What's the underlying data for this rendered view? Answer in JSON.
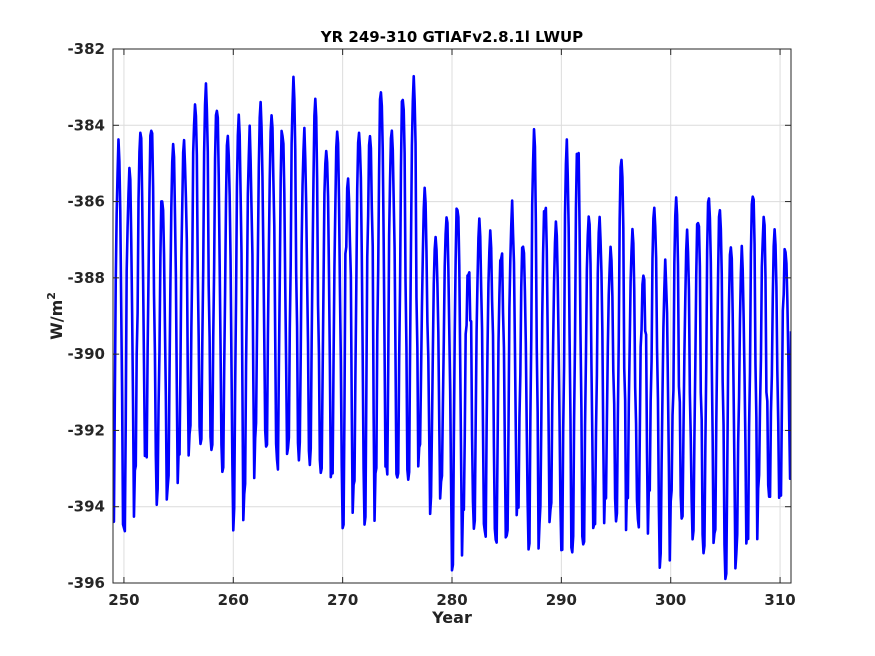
{
  "chart_data": {
    "type": "line",
    "title": "YR 249-310 GTIAFv2.8.1l LWUP",
    "xlabel": "Year",
    "ylabel_base": "W/m",
    "ylabel_sup": "2",
    "xlim": [
      249,
      311
    ],
    "ylim": [
      -396,
      -382
    ],
    "xticks": [
      250,
      260,
      270,
      280,
      290,
      300,
      310
    ],
    "yticks": [
      -382,
      -384,
      -386,
      -388,
      -390,
      -392,
      -394,
      -396
    ],
    "grid": true,
    "line_color": "#0000ff",
    "cycle_length_years": 1,
    "series": [
      {
        "peaks": [
          -384.6,
          -385.1,
          -384.2,
          -383.9,
          -385.7,
          -384.5,
          -384.5,
          -383.3,
          -383.2,
          -383.4,
          -384.4,
          -383.5,
          -384.3,
          -383.5,
          -383.7,
          -384.0,
          -382.9,
          -384.3,
          -383.5,
          -384.4,
          -384.2,
          -385.5,
          -383.9,
          -384.2,
          -383.1,
          -384.0,
          -383.1,
          -382.7,
          -385.9,
          -386.9,
          -386.4,
          -386.0,
          -387.8,
          -386.7,
          -386.9,
          -387.2,
          -386.2,
          -386.9,
          -384.2,
          -386.0,
          -386.6,
          -384.5,
          -384.5,
          -386.3,
          -386.4,
          -387.2,
          -384.8,
          -387.0,
          -388.0,
          -386.3,
          -387.7,
          -386.0,
          -387.0,
          -386.3,
          -385.7,
          -386.0,
          -387.2,
          -387.4,
          -385.6,
          -386.5,
          -387.0,
          -387.2
        ],
        "troughs": [
          -394.4,
          -394.6,
          -393.0,
          -392.7,
          -393.9,
          -393.5,
          -392.8,
          -392.2,
          -392.3,
          -392.6,
          -393.0,
          -394.4,
          -393.5,
          -392.1,
          -392.4,
          -393.0,
          -392.6,
          -392.5,
          -392.8,
          -393.1,
          -393.2,
          -394.4,
          -393.3,
          -394.6,
          -392.9,
          -393.0,
          -393.1,
          -393.0,
          -392.4,
          -394.1,
          -393.5,
          -395.6,
          -393.9,
          -394.4,
          -394.6,
          -394.8,
          -394.5,
          -394.0,
          -395.3,
          -394.3,
          -393.9,
          -395.4,
          -395.0,
          -394.9,
          -394.7,
          -393.6,
          -394.5,
          -393.7,
          -394.5,
          -393.8,
          -395.3,
          -393.8,
          -394.2,
          -394.6,
          -395.2,
          -394.8,
          -395.6,
          -395.0,
          -394.9,
          -393.4,
          -394.0,
          -393.5
        ],
        "mid_levels": [
          -389.0,
          -388.5,
          -388.2,
          -388.6,
          -389.0,
          -388.2,
          -387.8,
          -387.7,
          -387.6,
          -387.8,
          -387.9,
          -387.9,
          -387.8,
          -387.5,
          -387.6,
          -387.9,
          -387.7,
          -387.8,
          -387.9,
          -388.0,
          -387.8,
          -388.0,
          -387.9,
          -387.8,
          -387.6,
          -387.4,
          -387.5,
          -387.6,
          -388.3,
          -389.2,
          -389.4,
          -389.8,
          -389.8,
          -389.5,
          -390.0,
          -389.7,
          -389.6,
          -390.1,
          -389.9,
          -389.8,
          -389.6,
          -389.8,
          -389.9,
          -390.4,
          -390.3,
          -390.0,
          -390.1,
          -390.2,
          -389.7,
          -390.3,
          -390.3,
          -390.5,
          -390.4,
          -390.6,
          -390.5,
          -390.5,
          -390.4,
          -390.5,
          -389.9,
          -390.2,
          -390.1,
          -389.4
        ]
      }
    ]
  }
}
